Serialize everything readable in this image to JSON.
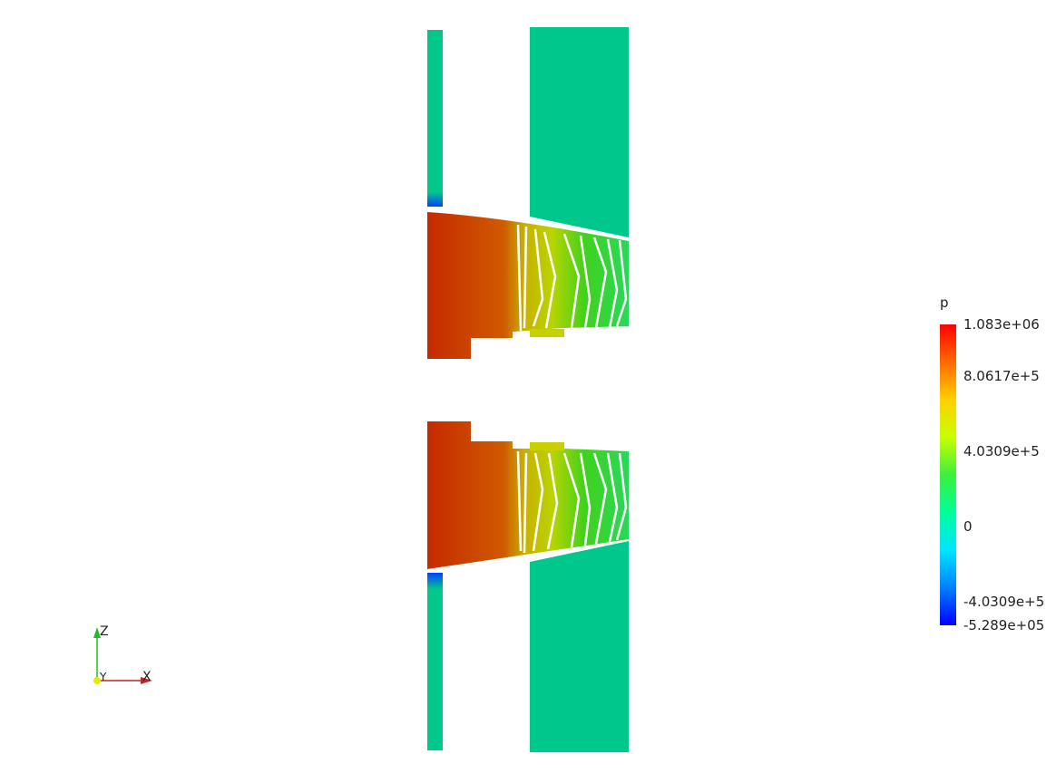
{
  "legend": {
    "title": "p",
    "labels": [
      "1.083e+06",
      "8.0617e+5",
      "4.0309e+5",
      "0",
      "-4.0309e+5",
      "-5.289e+05"
    ],
    "max": 1083000,
    "min": -528900,
    "colors": [
      "#ff0000",
      "#ff6a00",
      "#ffd000",
      "#c8ff00",
      "#3cf03c",
      "#00ff9a",
      "#00e5ff",
      "#0080ff",
      "#0000ff"
    ]
  },
  "orientation_axes": {
    "z": "Z",
    "y": "Y",
    "x": "X"
  },
  "colors": {
    "zero_pressure": "#00c88c",
    "high_pressure": "#cc3300"
  }
}
